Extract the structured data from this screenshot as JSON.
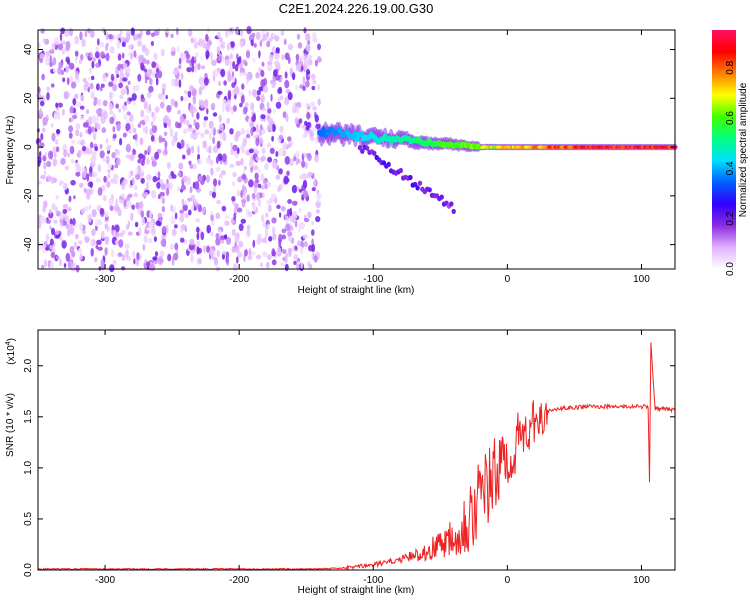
{
  "title": "C2E1.2024.226.19.00.G30",
  "chart_data": [
    {
      "type": "heatmap",
      "panel": "spectrogram",
      "xlabel": "Height of straight line (km)",
      "ylabel": "Frequency (Hz)",
      "xlim": [
        -350,
        125
      ],
      "ylim": [
        -50,
        48
      ],
      "xticks": [
        "-300",
        "-200",
        "-100",
        "0",
        "100"
      ],
      "yticks": [
        "-40",
        "-20",
        "0",
        "20",
        "40"
      ],
      "colorbar": {
        "label": "Normalized spectral amplitude",
        "range": [
          0,
          0.95
        ],
        "ticks": [
          "0.0",
          "0.2",
          "0.4",
          "0.6",
          "0.8"
        ],
        "colormap": [
          "#ffffff",
          "#e0b0ff",
          "#8a2be2",
          "#3000ff",
          "#0060ff",
          "#00e0ff",
          "#00ff80",
          "#40ff00",
          "#ffff00",
          "#ff8000",
          "#ff0000",
          "#ff1060"
        ]
      },
      "features": [
        {
          "description": "broadband noise",
          "x_range": [
            -350,
            -140
          ],
          "freq_range": [
            -50,
            48
          ],
          "amplitude": [
            0.05,
            0.15
          ]
        },
        {
          "description": "carrier line",
          "x_range": [
            -140,
            125
          ],
          "freq_center": [
            6,
            0
          ],
          "amplitude": [
            0.35,
            0.95
          ]
        },
        {
          "description": "drifting branch",
          "x_range": [
            -110,
            -40
          ],
          "freq_range": [
            0,
            -25
          ],
          "amplitude": [
            0.15,
            0.25
          ]
        }
      ]
    },
    {
      "type": "line",
      "panel": "snr",
      "xlabel": "Height of straight line (km)",
      "ylabel": "SNR (10 * v/v)",
      "scale_label": "(x10",
      "scale_exp": "4",
      "xlim": [
        -350,
        125
      ],
      "ylim": [
        0,
        2.35
      ],
      "xticks": [
        "-300",
        "-200",
        "-100",
        "0",
        "100"
      ],
      "yticks": [
        "0.0",
        "0.5",
        "1.0",
        "1.5",
        "2.0"
      ],
      "color": "#ee2222",
      "series": [
        {
          "x": [
            -350,
            -250,
            -150,
            -120,
            -100,
            -80,
            -60,
            -40,
            -30,
            -20,
            -10,
            0,
            10,
            20,
            30,
            40,
            60,
            80,
            100,
            105,
            106,
            107,
            110,
            125
          ],
          "y": [
            0.01,
            0.01,
            0.01,
            0.02,
            0.05,
            0.1,
            0.18,
            0.35,
            0.5,
            0.7,
            0.9,
            1.1,
            1.3,
            1.45,
            1.55,
            1.58,
            1.6,
            1.6,
            1.6,
            1.6,
            0.85,
            2.25,
            1.58,
            1.57
          ]
        }
      ]
    }
  ]
}
